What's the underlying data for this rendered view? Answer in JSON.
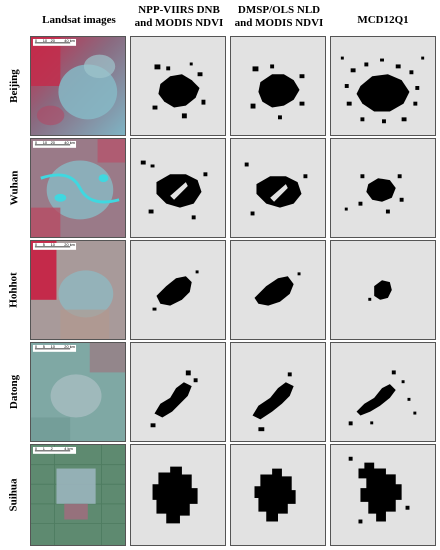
{
  "columns": {
    "landsat": "Landsat images",
    "npp": [
      "NPP-VIIRS DNB",
      "and MODIS NDVI"
    ],
    "dmsp": [
      "DMSP/OLS NLD",
      "and MODIS NDVI"
    ],
    "mcd": "MCD12Q1"
  },
  "rows": [
    {
      "city": "Beijing",
      "scale": [
        "0",
        "10",
        "20",
        "40 km"
      ]
    },
    {
      "city": "Wuhan",
      "scale": [
        "0",
        "10",
        "20",
        "40 km"
      ]
    },
    {
      "city": "Hohhot",
      "scale": [
        "0",
        "5",
        "10",
        "20 km"
      ]
    },
    {
      "city": "Datong",
      "scale": [
        "0",
        "5",
        "10",
        "20 km"
      ]
    },
    {
      "city": "Suihua",
      "scale": [
        "0",
        "1",
        "2",
        "4 km"
      ]
    }
  ],
  "colors": {
    "panel_background": "#e2e2e2",
    "urban_mask": "#000000",
    "vegetation_red": "#c42a4a",
    "urban_cyan": "#7fb4c4"
  }
}
